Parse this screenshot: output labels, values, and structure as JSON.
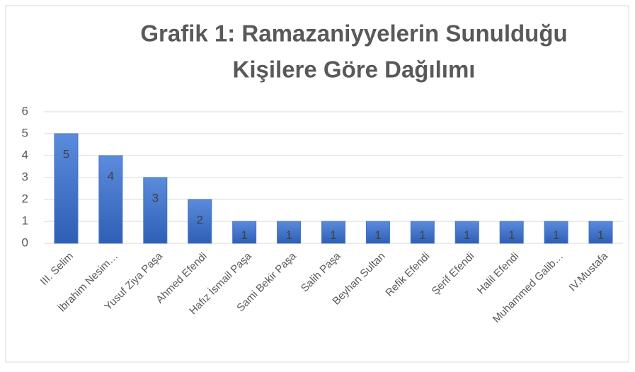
{
  "chart_data": {
    "type": "bar",
    "title": [
      "Grafik 1: Ramazaniyyelerin Sunulduğu",
      "Kişilere Göre Dağılımı"
    ],
    "categories": [
      "III. Selim",
      "İbrahim Nesim…",
      "Yusuf Ziya Paşa",
      "Ahmed Efendi",
      "Hafız İsmail Paşa",
      "Sami Bekir Paşa",
      "Salih Paşa",
      "Beyhan Sultan",
      "Refik Efendi",
      "Şerif Efendi",
      "Halil Efendi",
      "Muhammed Galib…",
      "IV.Mustafa"
    ],
    "values": [
      5,
      4,
      3,
      2,
      1,
      1,
      1,
      1,
      1,
      1,
      1,
      1,
      1
    ],
    "color": "#4472c4",
    "ylim": [
      0,
      6
    ],
    "yticks": [
      0,
      1,
      2,
      3,
      4,
      5,
      6
    ],
    "grid": true
  }
}
